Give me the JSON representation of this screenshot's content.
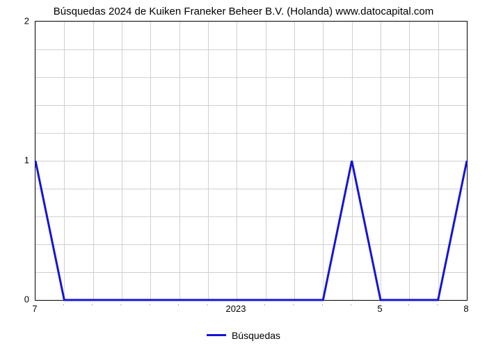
{
  "chart": {
    "type": "line",
    "title": "Búsquedas 2024 de Kuiken Franeker Beheer B.V. (Holanda) www.datocapital.com",
    "title_fontsize": 15,
    "title_color": "#000000",
    "background_color": "#ffffff",
    "plot_border_color": "#000000",
    "grid_color": "#d0d0d0",
    "legend": {
      "label": "Búsquedas",
      "line_color": "#1414d8",
      "position": "bottom-center"
    },
    "y_axis": {
      "min": 0,
      "max": 2,
      "tick_values": [
        0,
        1,
        2
      ],
      "tick_labels": [
        "0",
        "1",
        "2"
      ],
      "minor_ticks_between": 4,
      "tick_fontsize": 13,
      "tick_color": "#000000"
    },
    "x_axis": {
      "categories": [
        "7",
        "2023",
        "5",
        "8"
      ],
      "category_positions": [
        0,
        7,
        12,
        15
      ],
      "total_span": 15,
      "tick_fontsize": 13,
      "minor_tick_label": "'",
      "minor_positions": [
        1,
        2,
        3,
        4,
        5,
        6,
        8,
        9,
        10,
        11,
        13,
        14
      ],
      "tick_color": "#000000"
    },
    "series": {
      "name": "Búsquedas",
      "color": "#1414d8",
      "line_width": 3,
      "x": [
        0,
        1,
        2,
        3,
        4,
        5,
        6,
        7,
        8,
        9,
        10,
        11,
        12,
        13,
        14,
        15
      ],
      "y": [
        1,
        0,
        0,
        0,
        0,
        0,
        0,
        0,
        0,
        0,
        0,
        1,
        0,
        0,
        0,
        1
      ]
    }
  }
}
